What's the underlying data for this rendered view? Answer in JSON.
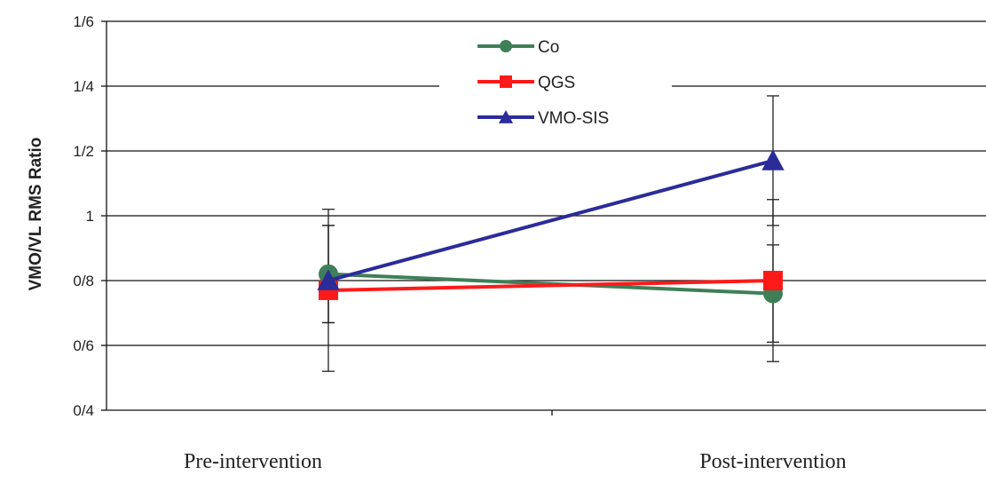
{
  "chart_data": {
    "type": "line",
    "categories": [
      "Pre-intervention",
      "Post-intervention"
    ],
    "ylabel": "VMO/VL RMS Ratio",
    "xlabel": "",
    "yticks": [
      "0/4",
      "0/6",
      "0/8",
      "1",
      "1/2",
      "1/4",
      "1/6"
    ],
    "ylim": [
      0.4,
      1.6
    ],
    "grid": true,
    "legend_position": "top-center",
    "series": [
      {
        "name": "Co",
        "color": "#3f7f58",
        "marker": "circle",
        "values": [
          0.82,
          0.76
        ],
        "err_low": [
          0.67,
          0.61
        ],
        "err_high": [
          0.97,
          0.91
        ]
      },
      {
        "name": "QGS",
        "color": "#ff1a1a",
        "marker": "square",
        "values": [
          0.77,
          0.8
        ],
        "err_low": [
          0.52,
          0.55
        ],
        "err_high": [
          1.02,
          1.05
        ]
      },
      {
        "name": "VMO-SIS",
        "color": "#2b2b9a",
        "marker": "triangle",
        "values": [
          0.8,
          1.17
        ],
        "err_low": [
          0.67,
          0.97
        ],
        "err_high": [
          0.97,
          1.37
        ]
      }
    ]
  }
}
